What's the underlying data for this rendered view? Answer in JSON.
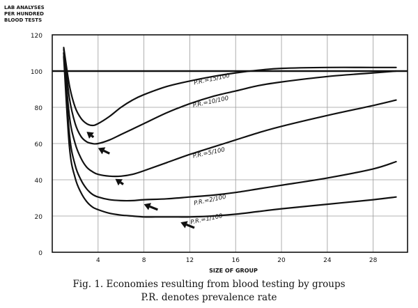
{
  "chart_data": {
    "type": "line",
    "ylabel_lines": [
      "LAB ANALYSES",
      "PER HUNDRED",
      "BLOOD TESTS"
    ],
    "xlabel": "SIZE OF GROUP",
    "xlim": [
      0,
      31
    ],
    "ylim": [
      0,
      120
    ],
    "x_ticks": [
      4,
      8,
      12,
      16,
      20,
      24,
      28
    ],
    "y_ticks": [
      0,
      20,
      40,
      60,
      80,
      100,
      120
    ],
    "reference_line": 100,
    "grid": true,
    "series": [
      {
        "name": "P.R.=15/100",
        "label_x": 12.4,
        "label_y": 92.5,
        "x": [
          1.0,
          1.5,
          2.0,
          2.5,
          3.0,
          3.5,
          4.0,
          5.0,
          6.0,
          7.0,
          8.0,
          10.0,
          12.0,
          14.0,
          16.0,
          18.0,
          20.0,
          24.0,
          28.0,
          30.0
        ],
        "y": [
          113,
          92,
          80,
          74,
          71,
          70,
          71,
          75,
          80,
          84,
          87,
          91.5,
          94.5,
          97,
          99,
          100.5,
          101.5,
          102,
          102,
          102
        ]
      },
      {
        "name": "P.R.=10/100",
        "label_x": 12.3,
        "label_y": 80,
        "x": [
          1.0,
          1.5,
          2.0,
          2.5,
          3.0,
          3.5,
          4.0,
          5.0,
          6.0,
          7.0,
          8.0,
          10.0,
          12.0,
          14.0,
          16.0,
          18.0,
          20.0,
          24.0,
          28.0,
          30.0
        ],
        "y": [
          112,
          85,
          71,
          64,
          61,
          60,
          60,
          62,
          65,
          68,
          71,
          77,
          82,
          86,
          89,
          92,
          94,
          97,
          99,
          100
        ]
      },
      {
        "name": "P.R.=5/100",
        "label_x": 12.3,
        "label_y": 52,
        "x": [
          1.0,
          1.5,
          2.0,
          2.5,
          3.0,
          3.5,
          4.0,
          5.0,
          6.0,
          7.0,
          8.0,
          10.0,
          12.0,
          14.0,
          16.0,
          18.0,
          20.0,
          24.0,
          28.0,
          30.0
        ],
        "y": [
          110,
          75,
          60,
          52,
          47,
          44.5,
          43,
          42,
          42,
          43,
          45,
          49.5,
          54,
          58,
          62,
          66,
          69.5,
          75.5,
          81,
          84
        ]
      },
      {
        "name": "P.R.=2/100",
        "label_x": 12.4,
        "label_y": 26,
        "x": [
          1.0,
          1.5,
          2.0,
          2.5,
          3.0,
          3.5,
          4.0,
          5.0,
          6.0,
          7.0,
          8.0,
          10.0,
          12.0,
          14.0,
          16.0,
          18.0,
          20.0,
          24.0,
          28.0,
          30.0
        ],
        "y": [
          110,
          65,
          48,
          40,
          35,
          32,
          30.5,
          29,
          28.5,
          28.5,
          29,
          29.5,
          30.5,
          31.5,
          33,
          35,
          37,
          41,
          46,
          50
        ]
      },
      {
        "name": "P.R.=1/100",
        "label_x": 12.1,
        "label_y": 15.5,
        "x": [
          1.0,
          1.5,
          2.0,
          2.5,
          3.0,
          3.5,
          4.0,
          5.0,
          6.0,
          7.0,
          8.0,
          9.0,
          10.0,
          11.0,
          12.0,
          14.0,
          16.0,
          18.0,
          20.0,
          24.0,
          28.0,
          30.0
        ],
        "y": [
          108,
          58,
          41,
          33,
          28,
          25,
          23.5,
          21.5,
          20.5,
          20,
          19.5,
          19.5,
          19.5,
          19.5,
          19.5,
          20,
          21,
          22.5,
          24,
          26.5,
          29,
          30.5
        ]
      }
    ],
    "arrows": [
      {
        "series": "P.R.=15/100",
        "from": [
          3.6,
          63.5
        ],
        "to": [
          3.0,
          66.5
        ]
      },
      {
        "series": "P.R.=10/100",
        "from": [
          5.0,
          54.5
        ],
        "to": [
          4.0,
          57.5
        ]
      },
      {
        "series": "P.R.=5/100",
        "from": [
          6.2,
          37.5
        ],
        "to": [
          5.5,
          40.5
        ]
      },
      {
        "series": "P.R.=2/100",
        "from": [
          9.2,
          23.5
        ],
        "to": [
          8.0,
          26.5
        ]
      },
      {
        "series": "P.R.=1/100",
        "from": [
          12.4,
          13.5
        ],
        "to": [
          11.2,
          16.5
        ]
      }
    ]
  },
  "caption": {
    "line1": "Fig. 1. Economies resulting from blood testing by groups",
    "line2": "P.R. denotes prevalence rate"
  }
}
